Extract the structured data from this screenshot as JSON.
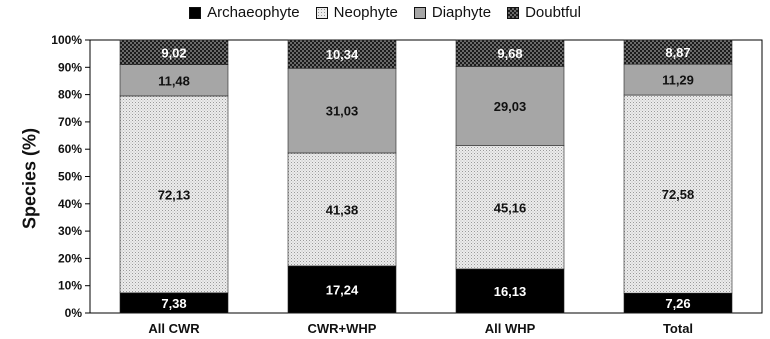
{
  "chart_data": {
    "type": "bar",
    "stacked": true,
    "categories": [
      "All CWR",
      "CWR+WHP",
      "All WHP",
      "Total"
    ],
    "ylabel": "Species (%)",
    "ylim": [
      0,
      100
    ],
    "yticks": [
      "0%",
      "10%",
      "20%",
      "30%",
      "40%",
      "50%",
      "60%",
      "70%",
      "80%",
      "90%",
      "100%"
    ],
    "legend_position": "top",
    "series": [
      {
        "name": "Archaeophyte",
        "values": [
          7.38,
          17.24,
          16.13,
          7.26
        ],
        "labels": [
          "7,38",
          "17,24",
          "16,13",
          "7,26"
        ],
        "color": "#000000",
        "fill": "solid"
      },
      {
        "name": "Neophyte",
        "values": [
          72.13,
          41.38,
          45.16,
          72.58
        ],
        "labels": [
          "72,13",
          "41,38",
          "45,16",
          "72,58"
        ],
        "color": "#e6e6e6",
        "fill": "dotted"
      },
      {
        "name": "Diaphyte",
        "values": [
          11.48,
          31.03,
          29.03,
          11.29
        ],
        "labels": [
          "11,48",
          "31,03",
          "29,03",
          "11,29"
        ],
        "color": "#a6a6a6",
        "fill": "solid"
      },
      {
        "name": "Doubtful",
        "values": [
          9.02,
          10.34,
          9.68,
          8.87
        ],
        "labels": [
          "9,02",
          "10,34",
          "9,68",
          "8,87"
        ],
        "color": "#333333",
        "fill": "checkered"
      }
    ]
  }
}
